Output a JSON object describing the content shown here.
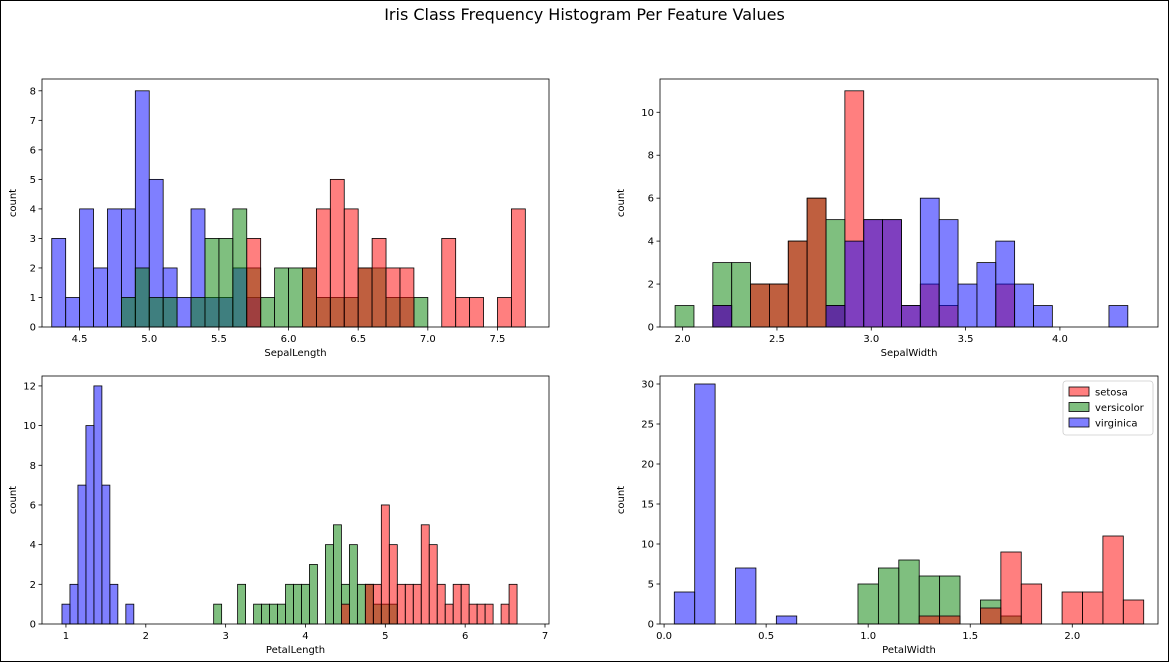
{
  "figure_title": "Iris Class Frequency Histogram Per Feature Values",
  "legend": [
    {
      "label": "setosa",
      "color": "#ff0000"
    },
    {
      "label": "versicolor",
      "color": "#008000"
    },
    {
      "label": "virginica",
      "color": "#0000ff"
    }
  ],
  "legend_placement": "upper right (PetalWidth panel only)",
  "bar_alpha": 0.5,
  "chart_data": [
    {
      "type": "bar",
      "title": "",
      "xlabel": "SepalLength",
      "ylabel": "count",
      "xlim": [
        4.23,
        7.87
      ],
      "ylim": [
        0,
        8.4
      ],
      "xticks": [
        4.5,
        5.0,
        5.5,
        6.0,
        6.5,
        7.0,
        7.5
      ],
      "xtick_labels": [
        "4.5",
        "5.0",
        "5.5",
        "6.0",
        "6.5",
        "7.0",
        "7.5"
      ],
      "yticks": [
        0,
        1,
        2,
        3,
        4,
        5,
        6,
        7,
        8
      ],
      "ytick_labels": [
        "0",
        "1",
        "2",
        "3",
        "4",
        "5",
        "6",
        "7",
        "8"
      ],
      "series": [
        {
          "name": "virginica",
          "color": "#0000ff",
          "bars": [
            [
              4.3,
              4.4,
              3
            ],
            [
              4.4,
              4.5,
              1
            ],
            [
              4.5,
              4.6,
              4
            ],
            [
              4.6,
              4.7,
              2
            ],
            [
              4.7,
              4.8,
              4
            ],
            [
              4.8,
              4.9,
              4
            ],
            [
              4.9,
              5.0,
              8
            ],
            [
              5.0,
              5.1,
              5
            ],
            [
              5.1,
              5.2,
              2
            ],
            [
              5.2,
              5.3,
              1
            ],
            [
              5.3,
              5.4,
              4
            ],
            [
              5.4,
              5.5,
              1
            ],
            [
              5.5,
              5.6,
              1
            ],
            [
              5.6,
              5.7,
              2
            ],
            [
              5.7,
              5.8,
              1
            ]
          ]
        },
        {
          "name": "versicolor",
          "color": "#008000",
          "bars": [
            [
              4.8,
              4.9,
              1
            ],
            [
              4.9,
              5.0,
              2
            ],
            [
              5.0,
              5.1,
              1
            ],
            [
              5.1,
              5.2,
              1
            ],
            [
              5.3,
              5.4,
              1
            ],
            [
              5.4,
              5.5,
              3
            ],
            [
              5.5,
              5.6,
              3
            ],
            [
              5.6,
              5.7,
              4
            ],
            [
              5.7,
              5.8,
              2
            ],
            [
              5.8,
              5.9,
              1
            ],
            [
              5.9,
              6.0,
              2
            ],
            [
              6.0,
              6.1,
              2
            ],
            [
              6.1,
              6.2,
              2
            ],
            [
              6.2,
              6.3,
              1
            ],
            [
              6.3,
              6.4,
              1
            ],
            [
              6.4,
              6.5,
              1
            ],
            [
              6.5,
              6.6,
              2
            ],
            [
              6.6,
              6.7,
              2
            ],
            [
              6.7,
              6.8,
              1
            ],
            [
              6.8,
              6.9,
              1
            ],
            [
              6.9,
              7.0,
              1
            ]
          ]
        },
        {
          "name": "setosa",
          "color": "#ff0000",
          "bars": [
            [
              5.7,
              5.8,
              3
            ],
            [
              6.1,
              6.2,
              2
            ],
            [
              6.2,
              6.3,
              4
            ],
            [
              6.3,
              6.4,
              5
            ],
            [
              6.4,
              6.5,
              4
            ],
            [
              6.5,
              6.6,
              2
            ],
            [
              6.6,
              6.7,
              3
            ],
            [
              6.7,
              6.8,
              2
            ],
            [
              6.8,
              6.9,
              2
            ],
            [
              7.1,
              7.2,
              3
            ],
            [
              7.2,
              7.3,
              1
            ],
            [
              7.3,
              7.4,
              1
            ],
            [
              7.5,
              7.6,
              1
            ],
            [
              7.6,
              7.7,
              4
            ]
          ]
        }
      ]
    },
    {
      "type": "bar",
      "title": "",
      "xlabel": "SepalWidth",
      "ylabel": "count",
      "xlim": [
        1.88,
        4.52
      ],
      "ylim": [
        0,
        11.55
      ],
      "xticks": [
        2.0,
        2.5,
        3.0,
        3.5,
        4.0
      ],
      "xtick_labels": [
        "2.0",
        "2.5",
        "3.0",
        "3.5",
        "4.0"
      ],
      "yticks": [
        0,
        2,
        4,
        6,
        8,
        10
      ],
      "ytick_labels": [
        "0",
        "2",
        "4",
        "6",
        "8",
        "10"
      ],
      "series": [
        {
          "name": "versicolor",
          "color": "#008000",
          "bars": [
            [
              1.96,
              2.06,
              1
            ],
            [
              2.16,
              2.26,
              3
            ],
            [
              2.26,
              2.36,
              3
            ],
            [
              2.36,
              2.46,
              2
            ],
            [
              2.46,
              2.56,
              2
            ],
            [
              2.56,
              2.66,
              4
            ],
            [
              2.66,
              2.76,
              6
            ],
            [
              2.76,
              2.86,
              5
            ]
          ]
        },
        {
          "name": "setosa",
          "color": "#ff0000",
          "bars": [
            [
              2.16,
              2.26,
              1
            ],
            [
              2.36,
              2.46,
              2
            ],
            [
              2.46,
              2.56,
              2
            ],
            [
              2.56,
              2.66,
              4
            ],
            [
              2.66,
              2.76,
              6
            ],
            [
              2.76,
              2.86,
              1
            ],
            [
              2.86,
              2.96,
              11
            ],
            [
              2.96,
              3.06,
              5
            ],
            [
              3.06,
              3.16,
              5
            ],
            [
              3.16,
              3.26,
              1
            ],
            [
              3.26,
              3.36,
              2
            ],
            [
              3.36,
              3.46,
              1
            ],
            [
              3.66,
              3.76,
              2
            ]
          ]
        },
        {
          "name": "virginica",
          "color": "#0000ff",
          "bars": [
            [
              2.16,
              2.26,
              1
            ],
            [
              2.76,
              2.86,
              1
            ],
            [
              2.86,
              2.96,
              4
            ],
            [
              2.96,
              3.06,
              5
            ],
            [
              3.06,
              3.16,
              5
            ],
            [
              3.16,
              3.26,
              1
            ],
            [
              3.26,
              3.36,
              6
            ],
            [
              3.36,
              3.46,
              5
            ],
            [
              3.46,
              3.56,
              2
            ],
            [
              3.56,
              3.66,
              3
            ],
            [
              3.66,
              3.76,
              4
            ],
            [
              3.76,
              3.86,
              2
            ],
            [
              3.86,
              3.96,
              1
            ],
            [
              4.26,
              4.36,
              1
            ]
          ]
        }
      ]
    },
    {
      "type": "bar",
      "title": "",
      "xlabel": "PetalLength",
      "ylabel": "count",
      "xlim": [
        0.7,
        7.05
      ],
      "ylim": [
        0,
        12.5
      ],
      "xticks": [
        1,
        2,
        3,
        4,
        5,
        6,
        7
      ],
      "xtick_labels": [
        "1",
        "2",
        "3",
        "4",
        "5",
        "6",
        "7"
      ],
      "yticks": [
        0,
        2,
        4,
        6,
        8,
        10,
        12
      ],
      "ytick_labels": [
        "0",
        "2",
        "4",
        "6",
        "8",
        "10",
        "12"
      ],
      "series": [
        {
          "name": "virginica",
          "color": "#0000ff",
          "bars": [
            [
              0.95,
              1.05,
              1
            ],
            [
              1.05,
              1.15,
              2
            ],
            [
              1.15,
              1.25,
              7
            ],
            [
              1.25,
              1.35,
              10
            ],
            [
              1.35,
              1.45,
              12
            ],
            [
              1.45,
              1.55,
              7
            ],
            [
              1.55,
              1.65,
              2
            ],
            [
              1.75,
              1.85,
              1
            ]
          ]
        },
        {
          "name": "versicolor",
          "color": "#008000",
          "bars": [
            [
              2.85,
              2.95,
              1
            ],
            [
              3.15,
              3.25,
              2
            ],
            [
              3.35,
              3.45,
              1
            ],
            [
              3.45,
              3.55,
              1
            ],
            [
              3.55,
              3.65,
              1
            ],
            [
              3.65,
              3.75,
              1
            ],
            [
              3.75,
              3.85,
              2
            ],
            [
              3.85,
              3.95,
              2
            ],
            [
              3.95,
              4.05,
              2
            ],
            [
              4.05,
              4.15,
              3
            ],
            [
              4.25,
              4.35,
              4
            ],
            [
              4.35,
              4.45,
              5
            ],
            [
              4.45,
              4.55,
              2
            ],
            [
              4.55,
              4.65,
              4
            ],
            [
              4.65,
              4.75,
              2
            ],
            [
              4.75,
              4.85,
              2
            ],
            [
              4.85,
              4.95,
              1
            ],
            [
              4.95,
              5.05,
              1
            ],
            [
              5.05,
              5.15,
              1
            ]
          ]
        },
        {
          "name": "setosa",
          "color": "#ff0000",
          "bars": [
            [
              4.45,
              4.55,
              1
            ],
            [
              4.75,
              4.85,
              2
            ],
            [
              4.85,
              4.95,
              2
            ],
            [
              4.95,
              5.05,
              6
            ],
            [
              5.05,
              5.15,
              4
            ],
            [
              5.15,
              5.25,
              2
            ],
            [
              5.25,
              5.35,
              2
            ],
            [
              5.35,
              5.45,
              2
            ],
            [
              5.45,
              5.55,
              5
            ],
            [
              5.55,
              5.65,
              4
            ],
            [
              5.65,
              5.75,
              2
            ],
            [
              5.75,
              5.85,
              1
            ],
            [
              5.85,
              5.95,
              2
            ],
            [
              5.95,
              6.05,
              2
            ],
            [
              6.05,
              6.15,
              1
            ],
            [
              6.15,
              6.25,
              1
            ],
            [
              6.25,
              6.35,
              1
            ],
            [
              6.45,
              6.55,
              1
            ],
            [
              6.55,
              6.65,
              2
            ]
          ]
        }
      ]
    },
    {
      "type": "bar",
      "title": "",
      "xlabel": "PetalWidth",
      "ylabel": "count",
      "xlim": [
        -0.02,
        2.42
      ],
      "ylim": [
        0,
        31
      ],
      "xticks": [
        0.0,
        0.5,
        1.0,
        1.5,
        2.0
      ],
      "xtick_labels": [
        "0.0",
        "0.5",
        "1.0",
        "1.5",
        "2.0"
      ],
      "yticks": [
        0,
        5,
        10,
        15,
        20,
        25,
        30
      ],
      "ytick_labels": [
        "0",
        "5",
        "10",
        "15",
        "20",
        "25",
        "30"
      ],
      "series": [
        {
          "name": "virginica",
          "color": "#0000ff",
          "bars": [
            [
              0.05,
              0.15,
              4
            ],
            [
              0.15,
              0.25,
              30
            ],
            [
              0.35,
              0.45,
              7
            ],
            [
              0.55,
              0.65,
              1
            ]
          ]
        },
        {
          "name": "versicolor",
          "color": "#008000",
          "bars": [
            [
              0.95,
              1.05,
              5
            ],
            [
              1.05,
              1.15,
              7
            ],
            [
              1.15,
              1.25,
              8
            ],
            [
              1.25,
              1.35,
              6
            ],
            [
              1.35,
              1.45,
              6
            ],
            [
              1.55,
              1.65,
              3
            ],
            [
              1.65,
              1.75,
              1
            ]
          ]
        },
        {
          "name": "setosa",
          "color": "#ff0000",
          "bars": [
            [
              1.25,
              1.35,
              1
            ],
            [
              1.35,
              1.45,
              1
            ],
            [
              1.55,
              1.65,
              2
            ],
            [
              1.65,
              1.75,
              9
            ],
            [
              1.75,
              1.85,
              5
            ],
            [
              1.95,
              2.05,
              4
            ],
            [
              2.05,
              2.15,
              4
            ],
            [
              2.15,
              2.25,
              11
            ],
            [
              2.25,
              2.35,
              3
            ]
          ]
        }
      ]
    }
  ]
}
